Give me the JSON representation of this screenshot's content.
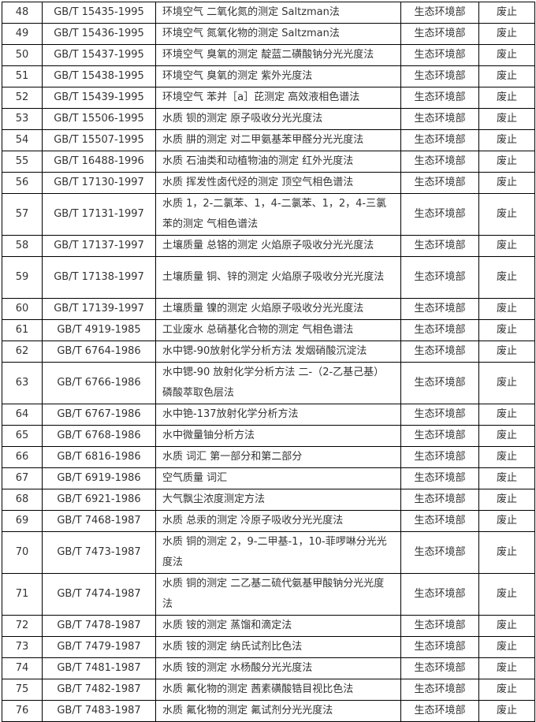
{
  "rows": [
    {
      "no": "48",
      "code": "GB/T 15435-1995",
      "title": "环境空气 二氧化氮的测定 Saltzman法",
      "dept": "生态环境部",
      "status": "废止"
    },
    {
      "no": "49",
      "code": "GB/T 15436-1995",
      "title": "环境空气 氮氧化物的测定 Saltzman法",
      "dept": "生态环境部",
      "status": "废止"
    },
    {
      "no": "50",
      "code": "GB/T 15437-1995",
      "title": "环境空气 臭氧的测定 靛蓝二磺酸钠分光光度法",
      "dept": "生态环境部",
      "status": "废止"
    },
    {
      "no": "51",
      "code": "GB/T 15438-1995",
      "title": "环境空气 臭氧的测定 紫外光度法",
      "dept": "生态环境部",
      "status": "废止"
    },
    {
      "no": "52",
      "code": "GB/T 15439-1995",
      "title": "环境空气 苯并［a］芘测定 高效液相色谱法",
      "dept": "生态环境部",
      "status": "废止"
    },
    {
      "no": "53",
      "code": "GB/T 15506-1995",
      "title": "水质 钡的测定 原子吸收分光光度法",
      "dept": "生态环境部",
      "status": "废止"
    },
    {
      "no": "54",
      "code": "GB/T 15507-1995",
      "title": "水质 肼的测定 对二甲氨基苯甲醛分光光度法",
      "dept": "生态环境部",
      "status": "废止"
    },
    {
      "no": "55",
      "code": "GB/T 16488-1996",
      "title": "水质 石油类和动植物油的测定 红外光度法",
      "dept": "生态环境部",
      "status": "废止"
    },
    {
      "no": "56",
      "code": "GB/T 17130-1997",
      "title": "水质 挥发性卤代烃的测定 顶空气相色谱法",
      "dept": "生态环境部",
      "status": "废止"
    },
    {
      "no": "57",
      "code": "GB/T 17131-1997",
      "title": "水质 1，2-二氯苯、1，4-二氯苯、1，2，4-三氯苯的测定 气相色谱法",
      "dept": "生态环境部",
      "status": "废止",
      "tall": true
    },
    {
      "no": "58",
      "code": "GB/T 17137-1997",
      "title": "土壤质量 总铬的测定 火焰原子吸收分光光度法",
      "dept": "生态环境部",
      "status": "废止"
    },
    {
      "no": "59",
      "code": "GB/T 17138-1997",
      "title": "土壤质量 铜、锌的测定 火焰原子吸收分光光度法",
      "dept": "生态环境部",
      "status": "废止",
      "tall": true
    },
    {
      "no": "60",
      "code": "GB/T 17139-1997",
      "title": "土壤质量 镍的测定 火焰原子吸收分光光度法",
      "dept": "生态环境部",
      "status": "废止"
    },
    {
      "no": "61",
      "code": "GB/T 4919-1985",
      "title": "工业废水 总硝基化合物的测定 气相色谱法",
      "dept": "生态环境部",
      "status": "废止"
    },
    {
      "no": "62",
      "code": "GB/T 6764-1986",
      "title": "水中锶-90放射化学分析方法 发烟硝酸沉淀法",
      "dept": "生态环境部",
      "status": "废止"
    },
    {
      "no": "63",
      "code": "GB/T 6766-1986",
      "title": "水中锶-90 放射化学分析方法 二-（2-乙基己基） 磷酸萃取色层法",
      "dept": "生态环境部",
      "status": "废止",
      "tall": true
    },
    {
      "no": "64",
      "code": "GB/T 6767-1986",
      "title": "水中铯-137放射化学分析方法",
      "dept": "生态环境部",
      "status": "废止"
    },
    {
      "no": "65",
      "code": "GB/T 6768-1986",
      "title": "水中微量铀分析方法",
      "dept": "生态环境部",
      "status": "废止"
    },
    {
      "no": "66",
      "code": "GB/T 6816-1986",
      "title": "水质 词汇 第一部分和第二部分",
      "dept": "生态环境部",
      "status": "废止"
    },
    {
      "no": "67",
      "code": "GB/T 6919-1986",
      "title": "空气质量 词汇",
      "dept": "生态环境部",
      "status": "废止"
    },
    {
      "no": "68",
      "code": "GB/T 6921-1986",
      "title": "大气飘尘浓度测定方法",
      "dept": "生态环境部",
      "status": "废止"
    },
    {
      "no": "69",
      "code": "GB/T 7468-1987",
      "title": "水质 总汞的测定 冷原子吸收分光光度法",
      "dept": "生态环境部",
      "status": "废止"
    },
    {
      "no": "70",
      "code": "GB/T 7473-1987",
      "title": "水质 铜的测定 2，9-二甲基-1，10-菲啰啉分光光度法",
      "dept": "生态环境部",
      "status": "废止",
      "tall": true
    },
    {
      "no": "71",
      "code": "GB/T 7474-1987",
      "title": "水质 铜的测定 二乙基二硫代氨基甲酸钠分光光度法",
      "dept": "生态环境部",
      "status": "废止",
      "tall": true
    },
    {
      "no": "72",
      "code": "GB/T 7478-1987",
      "title": "水质 铵的测定 蒸馏和滴定法",
      "dept": "生态环境部",
      "status": "废止"
    },
    {
      "no": "73",
      "code": "GB/T 7479-1987",
      "title": "水质 铵的测定 纳氏试剂比色法",
      "dept": "生态环境部",
      "status": "废止"
    },
    {
      "no": "74",
      "code": "GB/T 7481-1987",
      "title": "水质 铵的测定 水杨酸分光光度法",
      "dept": "生态环境部",
      "status": "废止"
    },
    {
      "no": "75",
      "code": "GB/T 7482-1987",
      "title": "水质 氟化物的测定 茜素磺酸锆目视比色法",
      "dept": "生态环境部",
      "status": "废止"
    },
    {
      "no": "76",
      "code": "GB/T 7483-1987",
      "title": "水质 氟化物的测定 氟试剂分光光度法",
      "dept": "生态环境部",
      "status": "废止"
    }
  ]
}
